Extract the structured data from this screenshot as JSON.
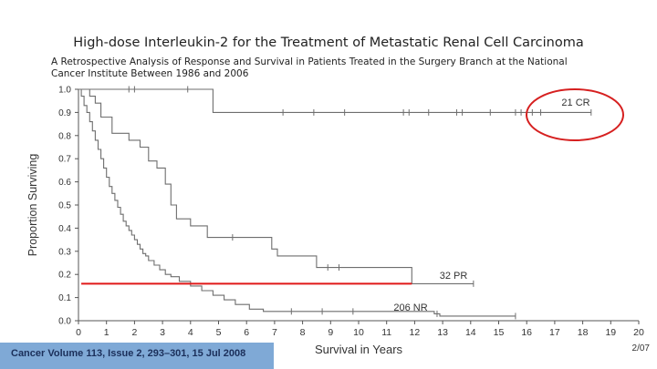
{
  "slide": {
    "title": "High-dose Interleukin-2 for the Treatment of Metastatic Renal Cell Carcinoma",
    "subtitle_line1": "A Retrospective Analysis of Response and Survival in Patients Treated in the Surgery Branch at the National",
    "subtitle_line2": "Cancer Institute Between 1986 and 2006",
    "citation": "Cancer Volume 113, Issue 2, 293–301, 15 Jul 2008",
    "date_stamp": "2/07"
  },
  "colors": {
    "curve": "#6e6e6e",
    "axis": "#555555",
    "highlight_circle": "#d62020",
    "median_line": "#e01818",
    "citation_bg": "#7fa9d6"
  },
  "chart_data": {
    "type": "line",
    "subtype": "kaplan-meier step",
    "xlabel": "Survival in Years",
    "ylabel": "Proportion Surviving",
    "xlim": [
      0,
      20
    ],
    "ylim": [
      0,
      1.0
    ],
    "xticks": [
      0,
      1,
      2,
      3,
      4,
      5,
      6,
      7,
      8,
      9,
      10,
      11,
      12,
      13,
      14,
      15,
      16,
      17,
      18,
      19,
      20
    ],
    "yticks": [
      "0.0",
      "0.1",
      "0.2",
      "0.3",
      "0.4",
      "0.5",
      "0.6",
      "0.7",
      "0.8",
      "0.9",
      "1.0"
    ],
    "grid": false,
    "series": [
      {
        "name": "21 CR",
        "steps": [
          [
            0,
            1.0
          ],
          [
            4.8,
            0.9
          ],
          [
            18.3,
            0.9
          ]
        ],
        "censored": [
          [
            1.8,
            1.0
          ],
          [
            2.0,
            1.0
          ],
          [
            3.9,
            1.0
          ],
          [
            7.3,
            0.9
          ],
          [
            8.4,
            0.9
          ],
          [
            9.5,
            0.9
          ],
          [
            11.6,
            0.9
          ],
          [
            11.8,
            0.9
          ],
          [
            12.5,
            0.9
          ],
          [
            13.5,
            0.9
          ],
          [
            13.7,
            0.9
          ],
          [
            14.7,
            0.9
          ],
          [
            15.6,
            0.9
          ],
          [
            15.8,
            0.9
          ],
          [
            16.2,
            0.9
          ],
          [
            16.5,
            0.9
          ],
          [
            18.3,
            0.9
          ]
        ]
      },
      {
        "name": "32 PR",
        "steps": [
          [
            0,
            1.0
          ],
          [
            0.4,
            0.97
          ],
          [
            0.6,
            0.94
          ],
          [
            0.8,
            0.88
          ],
          [
            1.2,
            0.81
          ],
          [
            1.8,
            0.78
          ],
          [
            2.2,
            0.75
          ],
          [
            2.5,
            0.69
          ],
          [
            2.8,
            0.66
          ],
          [
            3.1,
            0.59
          ],
          [
            3.3,
            0.5
          ],
          [
            3.5,
            0.44
          ],
          [
            4.0,
            0.41
          ],
          [
            4.6,
            0.36
          ],
          [
            6.9,
            0.31
          ],
          [
            7.1,
            0.28
          ],
          [
            8.5,
            0.23
          ],
          [
            11.9,
            0.16
          ],
          [
            14.1,
            0.16
          ]
        ],
        "censored": [
          [
            5.5,
            0.36
          ],
          [
            8.9,
            0.23
          ],
          [
            9.3,
            0.23
          ],
          [
            14.1,
            0.16
          ]
        ]
      },
      {
        "name": "206 NR",
        "steps": [
          [
            0,
            1.0
          ],
          [
            0.1,
            0.97
          ],
          [
            0.2,
            0.93
          ],
          [
            0.3,
            0.9
          ],
          [
            0.4,
            0.86
          ],
          [
            0.5,
            0.82
          ],
          [
            0.6,
            0.78
          ],
          [
            0.7,
            0.74
          ],
          [
            0.8,
            0.7
          ],
          [
            0.9,
            0.66
          ],
          [
            1.0,
            0.62
          ],
          [
            1.1,
            0.58
          ],
          [
            1.2,
            0.55
          ],
          [
            1.3,
            0.52
          ],
          [
            1.4,
            0.49
          ],
          [
            1.5,
            0.46
          ],
          [
            1.6,
            0.43
          ],
          [
            1.7,
            0.41
          ],
          [
            1.8,
            0.39
          ],
          [
            1.9,
            0.37
          ],
          [
            2.0,
            0.35
          ],
          [
            2.1,
            0.33
          ],
          [
            2.2,
            0.31
          ],
          [
            2.3,
            0.29
          ],
          [
            2.4,
            0.28
          ],
          [
            2.5,
            0.26
          ],
          [
            2.7,
            0.24
          ],
          [
            2.9,
            0.22
          ],
          [
            3.1,
            0.2
          ],
          [
            3.3,
            0.19
          ],
          [
            3.6,
            0.17
          ],
          [
            4.0,
            0.15
          ],
          [
            4.4,
            0.13
          ],
          [
            4.8,
            0.11
          ],
          [
            5.2,
            0.09
          ],
          [
            5.6,
            0.07
          ],
          [
            6.1,
            0.05
          ],
          [
            6.6,
            0.04
          ],
          [
            12.7,
            0.03
          ],
          [
            12.9,
            0.02
          ],
          [
            15.6,
            0.02
          ]
        ],
        "censored": [
          [
            7.6,
            0.04
          ],
          [
            8.7,
            0.04
          ],
          [
            9.8,
            0.04
          ],
          [
            12.8,
            0.03
          ],
          [
            15.6,
            0.02
          ]
        ]
      }
    ],
    "annotations": [
      {
        "type": "red-circle",
        "target": "21 CR"
      },
      {
        "type": "red-line",
        "y": 0.16,
        "x_from": 0.1,
        "x_to": 11.9
      }
    ]
  }
}
